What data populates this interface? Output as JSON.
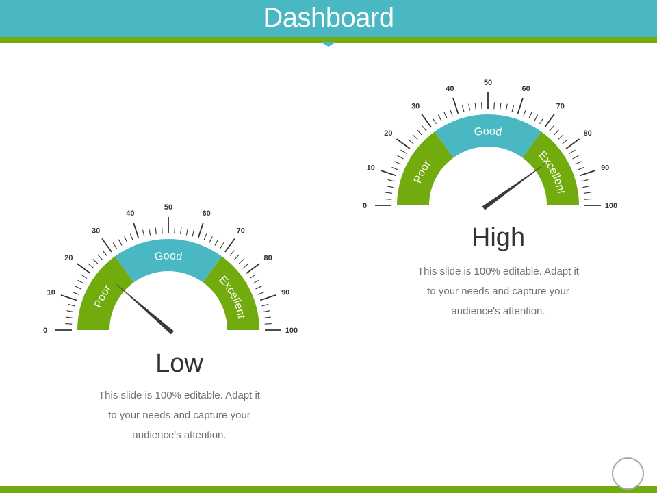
{
  "header": {
    "title": "Dashboard",
    "colors": {
      "bar": "#4ab8c2",
      "stripe": "#72ab0d"
    }
  },
  "colors": {
    "poor": "#72ab0d",
    "good": "#4ab8c2",
    "excellent": "#72ab0d",
    "needle": "#3a3a3a",
    "ticks": "#333333"
  },
  "gauges": [
    {
      "id": "low",
      "title": "Low",
      "description": "This slide is 100% editable. Adapt it to your needs and capture your audience's attention.",
      "value": 23,
      "scale": {
        "min": 0,
        "max": 100,
        "major_step": 10,
        "minor_step": 2
      },
      "tick_labels": [
        "0",
        "10",
        "20",
        "30",
        "40",
        "50",
        "60",
        "70",
        "80",
        "90",
        "100"
      ],
      "segments": [
        {
          "label": "Poor",
          "from": 0,
          "to": 30
        },
        {
          "label": "Good",
          "from": 30,
          "to": 70
        },
        {
          "label": "Excellent",
          "from": 70,
          "to": 100
        }
      ]
    },
    {
      "id": "high",
      "title": "High",
      "description": "This slide is 100% editable. Adapt it to your needs and capture your audience's attention.",
      "value": 80,
      "scale": {
        "min": 0,
        "max": 100,
        "major_step": 10,
        "minor_step": 2
      },
      "tick_labels": [
        "0",
        "10",
        "20",
        "30",
        "40",
        "50",
        "60",
        "70",
        "80",
        "90",
        "100"
      ],
      "segments": [
        {
          "label": "Poor",
          "from": 0,
          "to": 30
        },
        {
          "label": "Good",
          "from": 30,
          "to": 70
        },
        {
          "label": "Excellent",
          "from": 70,
          "to": 100
        }
      ]
    }
  ]
}
